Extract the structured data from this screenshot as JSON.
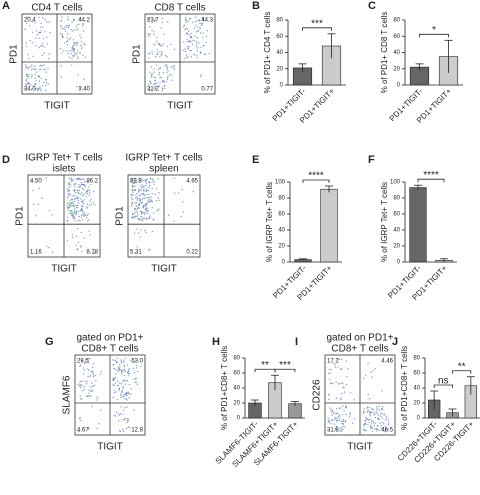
{
  "flow_panels": [
    {
      "panel": "A",
      "plots": [
        {
          "title": [
            "CD4 T cells"
          ],
          "ylabel": "PD1",
          "xlabel": "TIGIT",
          "quadrants": [
            "20.4",
            "44.2",
            "34.0",
            "3.40"
          ]
        },
        {
          "title": [
            "CD8 T cells"
          ],
          "ylabel": "PD1",
          "xlabel": "TIGIT",
          "quadrants": [
            "23.7",
            "44.3",
            "31.2",
            "0.77"
          ]
        }
      ]
    },
    {
      "panel": "D",
      "plots": [
        {
          "title": [
            "IGRP Tet+ T cells",
            "islets"
          ],
          "ylabel": "PD1",
          "xlabel": "TIGIT",
          "quadrants": [
            "4.50",
            "86.2",
            "1.16",
            "8.18"
          ]
        },
        {
          "title": [
            "IGRP Tet+ T cells",
            "spleen"
          ],
          "ylabel": "PD1",
          "xlabel": "TIGIT",
          "quadrants": [
            "89.8",
            "4.65",
            "5.31",
            "0.22"
          ]
        }
      ]
    },
    {
      "panel": "G",
      "plots": [
        {
          "title": [
            "gated on PD1+",
            "CD8+ T cells"
          ],
          "ylabel": "SLAMF6",
          "xlabel": "TIGIT",
          "quadrants": [
            "29.5",
            "53.0",
            "4.67",
            "12.8"
          ]
        }
      ]
    },
    {
      "panel": "I",
      "plots": [
        {
          "title": [
            "gated on PD1+",
            "CD8+ T cells"
          ],
          "ylabel": "CD226",
          "xlabel": "TIGIT",
          "quadrants": [
            "17.2",
            "4.46",
            "31.8",
            "46.5"
          ]
        }
      ]
    }
  ],
  "chart_data": [
    {
      "type": "bar",
      "panel": "B",
      "ylabel": "% of PD1+ CD4 T cells",
      "categories": [
        "PD1+TIGIT-",
        "PD1+TIGIT+"
      ],
      "values": [
        21,
        48
      ],
      "errors": [
        5,
        15
      ],
      "colors": [
        "#666666",
        "#cccccc"
      ],
      "ylim": [
        0,
        80
      ],
      "yticks": [
        0,
        20,
        40,
        60,
        80
      ],
      "significance": [
        "***"
      ]
    },
    {
      "type": "bar",
      "panel": "C",
      "ylabel": "% of PD1+ CD8 T cells",
      "categories": [
        "PD1+TIGIT-",
        "PD1+TIGIT+"
      ],
      "values": [
        22,
        35
      ],
      "errors": [
        4,
        20
      ],
      "colors": [
        "#666666",
        "#cccccc"
      ],
      "ylim": [
        0,
        80
      ],
      "yticks": [
        0,
        20,
        40,
        60,
        80
      ],
      "significance": [
        "*"
      ]
    },
    {
      "type": "bar",
      "panel": "E",
      "ylabel": "% of IGRP Tet+ T cells",
      "categories": [
        "PD1+TIGIT-",
        "PD1+TIGIT+"
      ],
      "values": [
        3,
        91
      ],
      "errors": [
        1,
        4
      ],
      "colors": [
        "#666666",
        "#cccccc"
      ],
      "ylim": [
        0,
        100
      ],
      "yticks": [
        0,
        20,
        40,
        60,
        80,
        100
      ],
      "significance": [
        "****"
      ]
    },
    {
      "type": "bar",
      "panel": "F",
      "ylabel": "% of IGRP Tet+ T cells",
      "categories": [
        "PD1+TIGIT-",
        "PD1+TIGIT+"
      ],
      "values": [
        93,
        2
      ],
      "errors": [
        3,
        2
      ],
      "colors": [
        "#666666",
        "#cccccc"
      ],
      "ylim": [
        0,
        100
      ],
      "yticks": [
        0,
        20,
        40,
        60,
        80,
        100
      ],
      "significance": [
        "****"
      ]
    },
    {
      "type": "bar",
      "panel": "H",
      "ylabel": "% of PD1+CD8+ T cells",
      "categories": [
        "SLAMF6-TIGIT-",
        "SLAMF6+TIGIT+",
        "SLAMF6-TIGIT+"
      ],
      "values": [
        20,
        47,
        19
      ],
      "errors": [
        4,
        10,
        3
      ],
      "colors": [
        "#666666",
        "#cccccc",
        "#999999"
      ],
      "ylim": [
        0,
        80
      ],
      "yticks": [
        0,
        20,
        40,
        60,
        80
      ],
      "significance": [
        "**",
        "***"
      ]
    },
    {
      "type": "bar",
      "panel": "J",
      "ylabel": "% of PD1+CD8+ T cells",
      "categories": [
        "CD226+TIGIT-",
        "CD226+TIGIT+",
        "CD226-TIGIT+"
      ],
      "values": [
        24,
        7,
        43
      ],
      "errors": [
        12,
        5,
        12
      ],
      "colors": [
        "#666666",
        "#999999",
        "#cccccc"
      ],
      "ylim": [
        0,
        80
      ],
      "yticks": [
        0,
        20,
        40,
        60,
        80
      ],
      "significance": [
        "ns",
        "**"
      ]
    }
  ]
}
